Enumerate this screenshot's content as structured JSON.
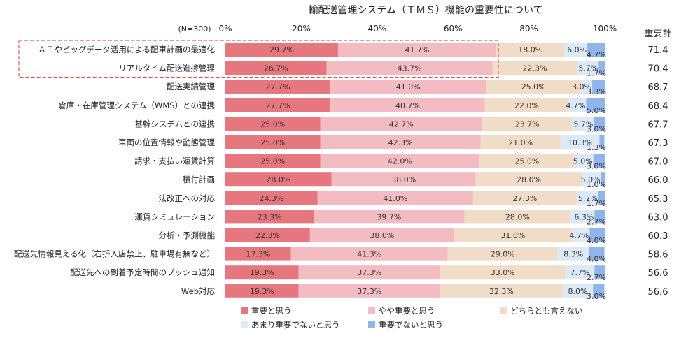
{
  "chart_data": {
    "type": "bar",
    "orientation": "horizontal",
    "stacked": true,
    "title": "輸配送管理システム（ＴＭＳ）機能の重要性について",
    "sample_label": "(N=300)",
    "score_header": "重要計",
    "xlim": [
      0,
      100
    ],
    "x_ticks": [
      "0%",
      "20%",
      "40%",
      "60%",
      "80%",
      "100%"
    ],
    "grid": false,
    "legend_position": "bottom",
    "categories": [
      "ＡＩやビッグデータ活用による配車計画の最適化",
      "リアルタイム配送進捗管理",
      "配送実績管理",
      "倉庫・在庫管理システム（WMS）との連携",
      "基幹システムとの連携",
      "車両の位置情報や動態管理",
      "請求・支払い運賃計算",
      "積付計画",
      "法改正への対応",
      "運賃シミュレーション",
      "分析・予測機能",
      "配送先情報見える化（右折入店禁止、駐車場有無など）",
      "配送先への到着予定時間のプッシュ通知",
      "Web対応"
    ],
    "series": [
      {
        "name": "重要と思う",
        "color": "#E6777F",
        "values": [
          29.7,
          26.7,
          27.7,
          27.7,
          25.0,
          25.0,
          25.0,
          28.0,
          24.3,
          23.3,
          22.3,
          17.3,
          19.3,
          19.3
        ],
        "labels": [
          "29.7%",
          "26.7%",
          "27.7%",
          "27.7%",
          "25.0%",
          "25.0%",
          "25.0%",
          "28.0%",
          "24.3%",
          "23.3%",
          "22.3%",
          "17.3%",
          "19.3%",
          "19.3%"
        ]
      },
      {
        "name": "やや重要と思う",
        "color": "#F2BCC2",
        "values": [
          41.7,
          43.7,
          41.0,
          40.7,
          42.7,
          42.3,
          42.0,
          38.0,
          41.0,
          39.7,
          38.0,
          41.3,
          37.3,
          37.3
        ],
        "labels": [
          "41.7%",
          "43.7%",
          "41.0%",
          "40.7%",
          "42.7%",
          "42.3%",
          "42.0%",
          "38.0%",
          "41.0%",
          "39.7%",
          "38.0%",
          "41.3%",
          "37.3%",
          "37.3%"
        ]
      },
      {
        "name": "どちらとも言えない",
        "color": "#F1DCC7",
        "values": [
          18.0,
          22.3,
          25.0,
          22.0,
          23.7,
          21.0,
          25.0,
          28.0,
          27.3,
          28.0,
          31.0,
          29.0,
          33.0,
          32.3
        ],
        "labels": [
          "18.0%",
          "22.3%",
          "25.0%",
          "22.0%",
          "23.7%",
          "21.0%",
          "25.0%",
          "28.0%",
          "27.3%",
          "28.0%",
          "31.0%",
          "29.0%",
          "33.0%",
          "32.3%"
        ]
      },
      {
        "name": "あまり重要でないと思う",
        "color": "#DCE9F7",
        "values": [
          6.0,
          5.7,
          3.0,
          4.7,
          5.7,
          10.3,
          5.0,
          5.0,
          5.7,
          6.3,
          4.7,
          8.3,
          7.7,
          8.0
        ],
        "labels": [
          "6.0%",
          "5.7%",
          "3.0%",
          "4.7%",
          "5.7%",
          "10.3%",
          "5.0%",
          "5.0%",
          "5.7%",
          "6.3%",
          "4.7%",
          "8.3%",
          "7.7%",
          "8.0%"
        ]
      },
      {
        "name": "重要でないと思う",
        "color": "#8FB5EA",
        "values": [
          4.7,
          1.7,
          3.3,
          5.0,
          3.0,
          1.3,
          3.0,
          1.0,
          1.7,
          2.7,
          4.0,
          4.0,
          2.7,
          3.0
        ],
        "labels": [
          "4.7%",
          "1.7%",
          "3.3%",
          "5.0%",
          "3.0%",
          "1.3%",
          "3.0%",
          "1.0%",
          "1.7%",
          "2.7%",
          "4.0%",
          "4.0%",
          "2.7%",
          "3.0%"
        ]
      }
    ],
    "importance_totals": [
      "71.4",
      "70.4",
      "68.7",
      "68.4",
      "67.7",
      "67.3",
      "67.0",
      "66.0",
      "65.3",
      "63.0",
      "60.3",
      "58.6",
      "56.6",
      "56.6"
    ],
    "highlighted_rows": [
      0,
      1
    ],
    "highlight_color": "#D9342B"
  }
}
